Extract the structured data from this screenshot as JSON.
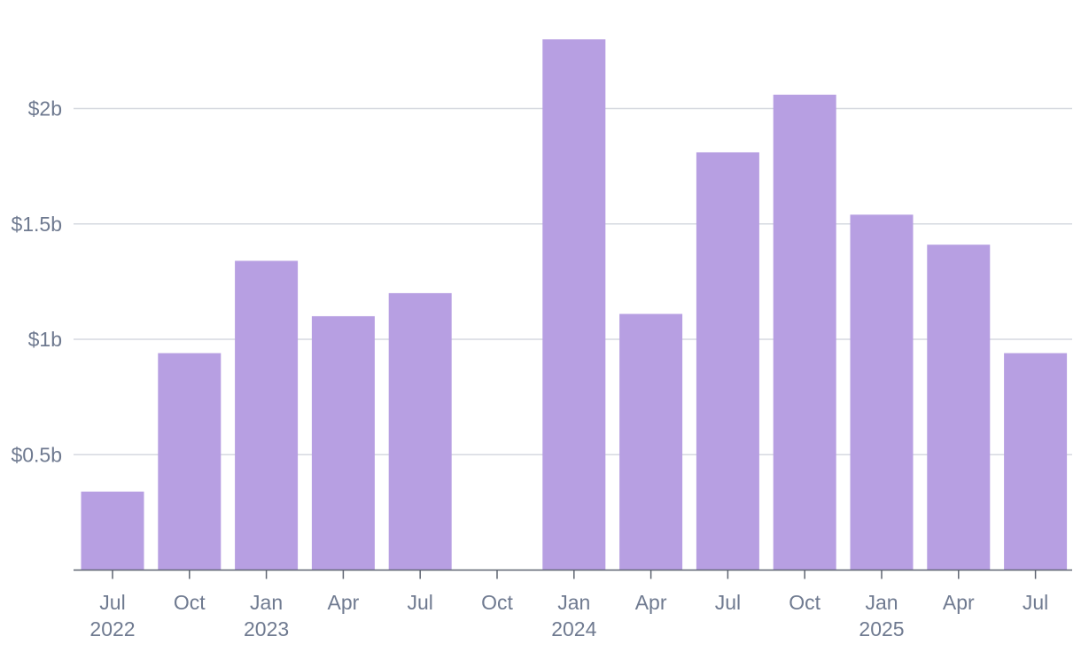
{
  "colors": {
    "bar": "#b79fe2",
    "grid": "#d6d9e0",
    "axis": "#5e6470",
    "label": "#6f7a90"
  },
  "chart_data": {
    "type": "bar",
    "title": "",
    "xlabel": "",
    "ylabel": "",
    "categories": [
      "Jul 2022",
      "Oct 2022",
      "Jan 2023",
      "Apr 2023",
      "Jul 2023",
      "Oct 2023",
      "Jan 2024",
      "Apr 2024",
      "Jul 2024",
      "Oct 2024",
      "Jan 2025",
      "Apr 2025",
      "Jul 2025"
    ],
    "values": [
      0.34,
      0.94,
      1.34,
      1.1,
      1.2,
      0,
      2.3,
      1.11,
      1.81,
      2.06,
      1.54,
      1.41,
      0.94
    ],
    "ylim": [
      0,
      2.4
    ],
    "y_ticks": [
      {
        "value": 0.5,
        "label": "$0.5b"
      },
      {
        "value": 1.0,
        "label": "$1b"
      },
      {
        "value": 1.5,
        "label": "$1.5b"
      },
      {
        "value": 2.0,
        "label": "$2b"
      }
    ],
    "x_ticks": [
      {
        "month": "Jul",
        "year": "2022"
      },
      {
        "month": "Oct",
        "year": ""
      },
      {
        "month": "Jan",
        "year": "2023"
      },
      {
        "month": "Apr",
        "year": ""
      },
      {
        "month": "Jul",
        "year": ""
      },
      {
        "month": "Oct",
        "year": ""
      },
      {
        "month": "Jan",
        "year": "2024"
      },
      {
        "month": "Apr",
        "year": ""
      },
      {
        "month": "Jul",
        "year": ""
      },
      {
        "month": "Oct",
        "year": ""
      },
      {
        "month": "Jan",
        "year": "2025"
      },
      {
        "month": "Apr",
        "year": ""
      },
      {
        "month": "Jul",
        "year": ""
      }
    ],
    "grid": true,
    "legend": "none"
  }
}
